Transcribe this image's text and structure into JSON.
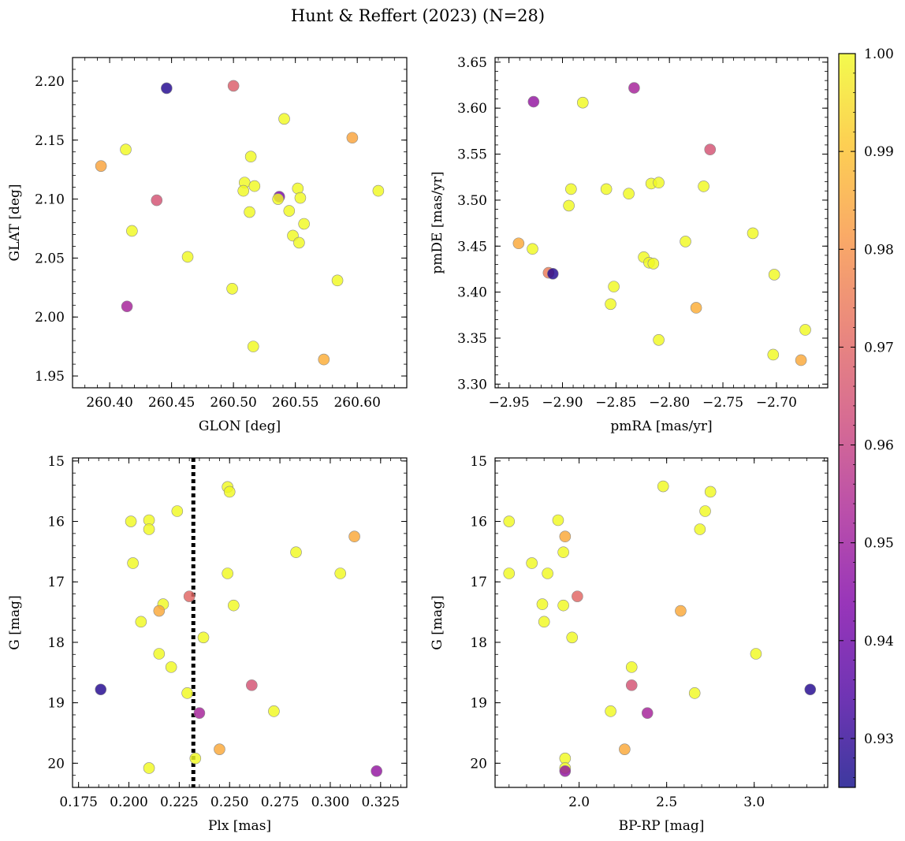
{
  "title": "Hunt & Reffert (2023) (N=28)",
  "colors": {
    "colormap": "plasma",
    "marker_edge": "#8a8a8a",
    "vline": "#000000"
  },
  "colorbar": {
    "range": [
      0.925,
      1.0
    ],
    "ticks": [
      0.93,
      0.94,
      0.95,
      0.96,
      0.97,
      0.98,
      0.99,
      1.0
    ],
    "tick_labels": [
      "0.93",
      "0.94",
      "0.95",
      "0.96",
      "0.97",
      "0.98",
      "0.99",
      "1.00"
    ]
  },
  "chart_data": [
    {
      "type": "scatter",
      "name": "glon-glat",
      "xlabel": "GLON [deg]",
      "ylabel": "GLAT [deg]",
      "xlim": [
        260.37,
        260.64
      ],
      "ylim": [
        1.94,
        2.22
      ],
      "yinvert": false,
      "xticks": [
        260.4,
        260.45,
        260.5,
        260.55,
        260.6
      ],
      "xtick_labels": [
        "260.40",
        "260.45",
        "260.50",
        "260.55",
        "260.60"
      ],
      "yticks": [
        1.95,
        2.0,
        2.05,
        2.1,
        2.15,
        2.2
      ],
      "ytick_labels": [
        "1.95",
        "2.00",
        "2.05",
        "2.10",
        "2.15",
        "2.20"
      ],
      "points": [
        [
          260.446,
          2.194,
          0.928
        ],
        [
          260.5,
          2.196,
          0.968
        ],
        [
          260.393,
          2.128,
          0.984
        ],
        [
          260.413,
          2.142,
          1.0
        ],
        [
          260.438,
          2.099,
          0.965
        ],
        [
          260.418,
          2.073,
          1.0
        ],
        [
          260.414,
          2.009,
          0.952
        ],
        [
          260.463,
          2.051,
          1.0
        ],
        [
          260.499,
          2.024,
          1.0
        ],
        [
          260.509,
          2.114,
          1.0
        ],
        [
          260.508,
          2.107,
          1.0
        ],
        [
          260.514,
          2.136,
          1.0
        ],
        [
          260.513,
          2.089,
          1.0
        ],
        [
          260.517,
          2.111,
          1.0
        ],
        [
          260.537,
          2.102,
          0.943
        ],
        [
          260.536,
          2.1,
          1.0
        ],
        [
          260.541,
          2.168,
          1.0
        ],
        [
          260.545,
          2.09,
          1.0
        ],
        [
          260.548,
          2.069,
          1.0
        ],
        [
          260.552,
          2.109,
          1.0
        ],
        [
          260.553,
          2.063,
          1.0
        ],
        [
          260.554,
          2.101,
          1.0
        ],
        [
          260.557,
          2.079,
          1.0
        ],
        [
          260.516,
          1.975,
          1.0
        ],
        [
          260.573,
          1.964,
          0.986
        ],
        [
          260.584,
          2.031,
          1.0
        ],
        [
          260.596,
          2.152,
          0.984
        ],
        [
          260.617,
          2.107,
          1.0
        ]
      ]
    },
    {
      "type": "scatter",
      "name": "pmra-pmde",
      "xlabel": "pmRA [mas/yr]",
      "ylabel": "pmDE [mas/yr]",
      "xlim": [
        -2.963,
        -2.652
      ],
      "ylim": [
        3.296,
        3.655
      ],
      "yinvert": false,
      "xticks": [
        -2.95,
        -2.9,
        -2.85,
        -2.8,
        -2.75,
        -2.7,
        -2.65
      ],
      "xtick_labels": [
        "−2.95",
        "−2.90",
        "−2.85",
        "−2.80",
        "−2.75",
        "−2.70",
        "−2.65"
      ],
      "yticks": [
        3.3,
        3.35,
        3.4,
        3.45,
        3.5,
        3.55,
        3.6,
        3.65
      ],
      "ytick_labels": [
        "3.30",
        "3.35",
        "3.40",
        "3.45",
        "3.50",
        "3.55",
        "3.60",
        "3.65"
      ],
      "points": [
        [
          -2.927,
          3.607,
          0.948
        ],
        [
          -2.833,
          3.622,
          0.952
        ],
        [
          -2.881,
          3.606,
          1.0
        ],
        [
          -2.762,
          3.555,
          0.965
        ],
        [
          -2.892,
          3.512,
          1.0
        ],
        [
          -2.859,
          3.512,
          1.0
        ],
        [
          -2.838,
          3.507,
          1.0
        ],
        [
          -2.817,
          3.518,
          1.0
        ],
        [
          -2.81,
          3.519,
          1.0
        ],
        [
          -2.768,
          3.515,
          1.0
        ],
        [
          -2.894,
          3.494,
          1.0
        ],
        [
          -2.941,
          3.453,
          0.985
        ],
        [
          -2.928,
          3.447,
          1.0
        ],
        [
          -2.722,
          3.464,
          1.0
        ],
        [
          -2.785,
          3.455,
          1.0
        ],
        [
          -2.824,
          3.438,
          1.0
        ],
        [
          -2.819,
          3.432,
          1.0
        ],
        [
          -2.815,
          3.431,
          1.0
        ],
        [
          -2.913,
          3.421,
          0.975
        ],
        [
          -2.909,
          3.42,
          0.928
        ],
        [
          -2.702,
          3.419,
          1.0
        ],
        [
          -2.852,
          3.406,
          1.0
        ],
        [
          -2.855,
          3.387,
          1.0
        ],
        [
          -2.775,
          3.383,
          0.986
        ],
        [
          -2.673,
          3.359,
          1.0
        ],
        [
          -2.81,
          3.348,
          1.0
        ],
        [
          -2.703,
          3.332,
          1.0
        ],
        [
          -2.677,
          3.326,
          0.985
        ]
      ]
    },
    {
      "type": "scatter",
      "name": "plx-g",
      "xlabel": "Plx [mas]",
      "ylabel": "G [mag]",
      "xlim": [
        0.172,
        0.338
      ],
      "ylim": [
        14.95,
        20.4
      ],
      "yinvert": true,
      "vline": 0.232,
      "xticks": [
        0.175,
        0.2,
        0.225,
        0.25,
        0.275,
        0.3,
        0.325
      ],
      "xtick_labels": [
        "0.175",
        "0.200",
        "0.225",
        "0.250",
        "0.275",
        "0.300",
        "0.325"
      ],
      "yticks": [
        15,
        16,
        17,
        18,
        19,
        20
      ],
      "ytick_labels": [
        "15",
        "16",
        "17",
        "18",
        "19",
        "20"
      ],
      "points": [
        [
          0.249,
          15.43,
          1.0
        ],
        [
          0.25,
          15.51,
          1.0
        ],
        [
          0.224,
          15.83,
          1.0
        ],
        [
          0.201,
          16.0,
          1.0
        ],
        [
          0.21,
          15.98,
          1.0
        ],
        [
          0.21,
          16.13,
          1.0
        ],
        [
          0.312,
          16.25,
          0.985
        ],
        [
          0.202,
          16.69,
          1.0
        ],
        [
          0.283,
          16.51,
          1.0
        ],
        [
          0.249,
          16.86,
          1.0
        ],
        [
          0.305,
          16.86,
          1.0
        ],
        [
          0.23,
          17.24,
          0.97
        ],
        [
          0.217,
          17.37,
          1.0
        ],
        [
          0.215,
          17.48,
          0.985
        ],
        [
          0.252,
          17.39,
          1.0
        ],
        [
          0.206,
          17.66,
          1.0
        ],
        [
          0.237,
          17.92,
          1.0
        ],
        [
          0.215,
          18.19,
          1.0
        ],
        [
          0.221,
          18.41,
          1.0
        ],
        [
          0.186,
          18.78,
          0.928
        ],
        [
          0.229,
          18.84,
          1.0
        ],
        [
          0.261,
          18.71,
          0.965
        ],
        [
          0.272,
          19.14,
          1.0
        ],
        [
          0.235,
          19.17,
          0.952
        ],
        [
          0.245,
          19.77,
          0.985
        ],
        [
          0.233,
          19.92,
          1.0
        ],
        [
          0.21,
          20.08,
          1.0
        ],
        [
          0.323,
          20.13,
          0.948
        ]
      ]
    },
    {
      "type": "scatter",
      "name": "bprp-g",
      "xlabel": "BP-RP [mag]",
      "ylabel": "G [mag]",
      "xlim": [
        1.52,
        3.42
      ],
      "ylim": [
        14.95,
        20.4
      ],
      "yinvert": true,
      "xticks": [
        2.0,
        2.5,
        3.0
      ],
      "xtick_labels": [
        "2.0",
        "2.5",
        "3.0"
      ],
      "yticks": [
        15,
        16,
        17,
        18,
        19,
        20
      ],
      "ytick_labels": [
        "15",
        "16",
        "17",
        "18",
        "19",
        "20"
      ],
      "points": [
        [
          2.48,
          15.42,
          1.0
        ],
        [
          2.75,
          15.51,
          1.0
        ],
        [
          2.72,
          15.83,
          1.0
        ],
        [
          1.6,
          16.0,
          1.0
        ],
        [
          1.88,
          15.98,
          1.0
        ],
        [
          2.69,
          16.13,
          1.0
        ],
        [
          1.92,
          16.25,
          0.985
        ],
        [
          1.91,
          16.51,
          1.0
        ],
        [
          1.73,
          16.69,
          1.0
        ],
        [
          1.6,
          16.86,
          1.0
        ],
        [
          1.82,
          16.86,
          1.0
        ],
        [
          1.99,
          17.24,
          0.97
        ],
        [
          1.79,
          17.37,
          1.0
        ],
        [
          1.91,
          17.39,
          1.0
        ],
        [
          2.58,
          17.48,
          0.985
        ],
        [
          1.8,
          17.66,
          1.0
        ],
        [
          1.96,
          17.92,
          1.0
        ],
        [
          3.01,
          18.19,
          1.0
        ],
        [
          2.3,
          18.41,
          1.0
        ],
        [
          2.3,
          18.71,
          0.965
        ],
        [
          2.66,
          18.84,
          1.0
        ],
        [
          3.32,
          18.78,
          0.928
        ],
        [
          2.18,
          19.14,
          1.0
        ],
        [
          2.39,
          19.17,
          0.952
        ],
        [
          2.26,
          19.77,
          0.985
        ],
        [
          1.92,
          19.92,
          1.0
        ],
        [
          1.92,
          20.08,
          1.0
        ],
        [
          1.92,
          20.13,
          0.948
        ]
      ]
    }
  ]
}
